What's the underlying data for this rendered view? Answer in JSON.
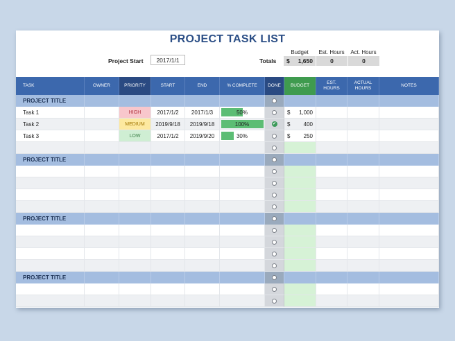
{
  "title": "PROJECT TASK LIST",
  "project_start": {
    "label": "Project Start",
    "value": "2017/1/1"
  },
  "totals": {
    "label": "Totals",
    "headers": [
      "Budget",
      "Est. Hours",
      "Act. Hours"
    ],
    "currency": "$",
    "budget": "1,650",
    "est_hours": "0",
    "act_hours": "0"
  },
  "columns": {
    "task": "TASK",
    "owner": "OWNER",
    "priority": "PRIORITY",
    "start": "START",
    "end": "END",
    "complete": "% COMPLETE",
    "done": "DONE",
    "budget": "BUDGET",
    "est_hours": "EST. HOURS",
    "actual_hours": "ACTUAL HOURS",
    "notes": "NOTES"
  },
  "currency_symbol": "$",
  "sections": [
    {
      "title": "PROJECT TITLE",
      "tasks": [
        {
          "name": "Task 1",
          "priority": "HIGH",
          "priority_bg": "#f8c7cc",
          "priority_fg": "#b0303c",
          "start": "2017/1/2",
          "end": "2017/1/3",
          "complete": "50%",
          "complete_fraction": 0.5,
          "done": false,
          "budget": "1,000"
        },
        {
          "name": "Task 2",
          "priority": "MEDIUM",
          "priority_bg": "#fde9a0",
          "priority_fg": "#a07400",
          "start": "2019/9/18",
          "end": "2019/9/18",
          "complete": "100%",
          "complete_fraction": 1.0,
          "done": true,
          "budget": "400"
        },
        {
          "name": "Task 3",
          "priority": "LOW",
          "priority_bg": "#cfeed3",
          "priority_fg": "#3b7d47",
          "start": "2017/1/2",
          "end": "2019/9/20",
          "complete": "30%",
          "complete_fraction": 0.3,
          "done": false,
          "budget": "250"
        }
      ],
      "empty_rows": 1
    },
    {
      "title": "PROJECT TITLE",
      "tasks": [],
      "empty_rows": 4
    },
    {
      "title": "PROJECT TITLE",
      "tasks": [],
      "empty_rows": 4
    },
    {
      "title": "PROJECT TITLE",
      "tasks": [],
      "empty_rows": 2
    }
  ],
  "colors": {
    "header_blue": "#3c68ad",
    "priority_header": "#2a4a82",
    "budget_header": "#3f9b4f",
    "section_row": "#a4bde0",
    "progress_green": "#5cbd74"
  }
}
